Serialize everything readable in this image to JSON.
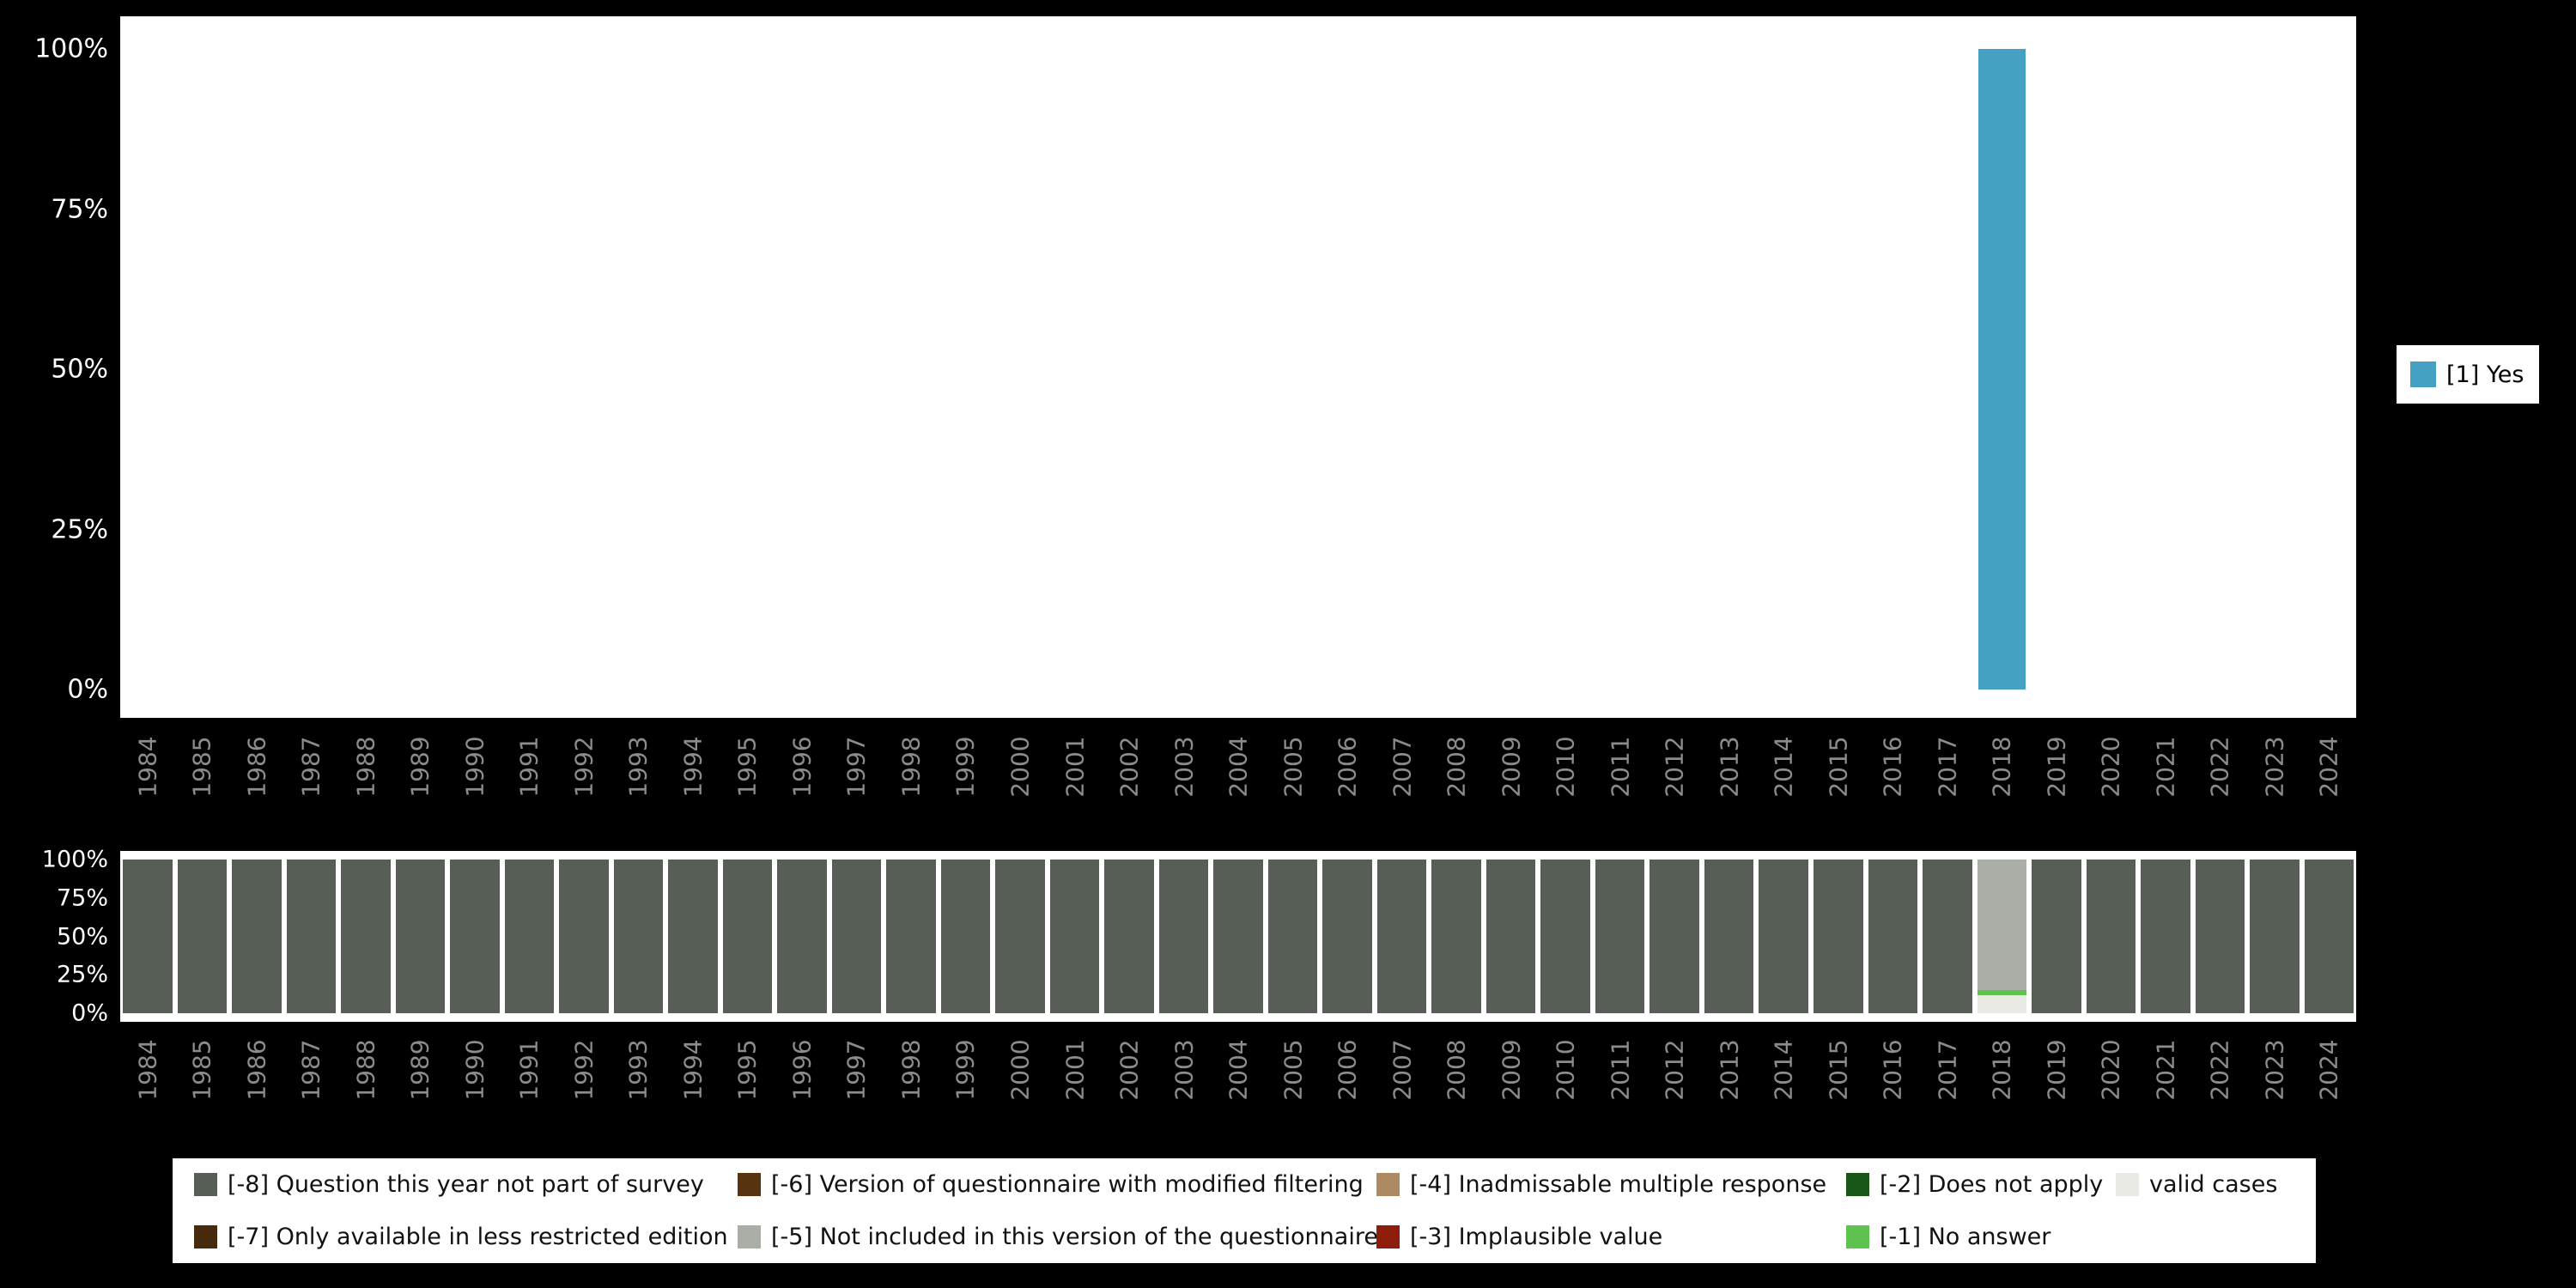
{
  "page": {
    "background": "#000000",
    "panel_background": "#ffffff",
    "x_tick_color": "#8c8c8c",
    "y_tick_color": "#ffffff"
  },
  "chart_data": [
    {
      "type": "bar",
      "title": "",
      "xlabel": "",
      "ylabel": "",
      "ylim": [
        0,
        100
      ],
      "y_ticks": [
        "100%",
        "75%",
        "50%",
        "25%",
        "0%"
      ],
      "legend_position": "right",
      "x": [
        1984,
        1985,
        1986,
        1987,
        1988,
        1989,
        1990,
        1991,
        1992,
        1993,
        1994,
        1995,
        1996,
        1997,
        1998,
        1999,
        2000,
        2001,
        2002,
        2003,
        2004,
        2005,
        2006,
        2007,
        2008,
        2009,
        2010,
        2011,
        2012,
        2013,
        2014,
        2015,
        2016,
        2017,
        2018,
        2019,
        2020,
        2021,
        2022,
        2023,
        2024
      ],
      "series": [
        {
          "name": "[1] Yes",
          "color": "#45a1c1",
          "values": [
            0,
            0,
            0,
            0,
            0,
            0,
            0,
            0,
            0,
            0,
            0,
            0,
            0,
            0,
            0,
            0,
            0,
            0,
            0,
            0,
            0,
            0,
            0,
            0,
            0,
            0,
            0,
            0,
            0,
            0,
            0,
            0,
            0,
            0,
            100,
            0,
            0,
            0,
            0,
            0,
            0
          ]
        }
      ]
    },
    {
      "type": "stacked_bar",
      "title": "",
      "xlabel": "",
      "ylabel": "",
      "ylim": [
        0,
        100
      ],
      "y_ticks": [
        "100%",
        "75%",
        "50%",
        "25%",
        "0%"
      ],
      "legend_position": "bottom",
      "stack_order": "bottom_to_top",
      "x": [
        1984,
        1985,
        1986,
        1987,
        1988,
        1989,
        1990,
        1991,
        1992,
        1993,
        1994,
        1995,
        1996,
        1997,
        1998,
        1999,
        2000,
        2001,
        2002,
        2003,
        2004,
        2005,
        2006,
        2007,
        2008,
        2009,
        2010,
        2011,
        2012,
        2013,
        2014,
        2015,
        2016,
        2017,
        2018,
        2019,
        2020,
        2021,
        2022,
        2023,
        2024
      ],
      "series": [
        {
          "name": "valid cases",
          "color": "#e8eae3",
          "values": [
            0,
            0,
            0,
            0,
            0,
            0,
            0,
            0,
            0,
            0,
            0,
            0,
            0,
            0,
            0,
            0,
            0,
            0,
            0,
            0,
            0,
            0,
            0,
            0,
            0,
            0,
            0,
            0,
            0,
            0,
            0,
            0,
            0,
            0,
            12,
            0,
            0,
            0,
            0,
            0,
            0
          ]
        },
        {
          "name": "[-1] No answer",
          "color": "#5ec24e",
          "values": [
            0,
            0,
            0,
            0,
            0,
            0,
            0,
            0,
            0,
            0,
            0,
            0,
            0,
            0,
            0,
            0,
            0,
            0,
            0,
            0,
            0,
            0,
            0,
            0,
            0,
            0,
            0,
            0,
            0,
            0,
            0,
            0,
            0,
            0,
            3,
            0,
            0,
            0,
            0,
            0,
            0
          ]
        },
        {
          "name": "[-5] Not included in this version of the questionnaire",
          "color": "#a9afa6",
          "values": [
            0,
            0,
            0,
            0,
            0,
            0,
            0,
            0,
            0,
            0,
            0,
            0,
            0,
            0,
            0,
            0,
            0,
            0,
            0,
            0,
            0,
            0,
            0,
            0,
            0,
            0,
            0,
            0,
            0,
            0,
            0,
            0,
            0,
            0,
            85,
            0,
            0,
            0,
            0,
            0,
            0
          ]
        },
        {
          "name": "[-8] Question this year not part of survey",
          "color": "#575e55",
          "values": [
            100,
            100,
            100,
            100,
            100,
            100,
            100,
            100,
            100,
            100,
            100,
            100,
            100,
            100,
            100,
            100,
            100,
            100,
            100,
            100,
            100,
            100,
            100,
            100,
            100,
            100,
            100,
            100,
            100,
            100,
            100,
            100,
            100,
            100,
            0,
            100,
            100,
            100,
            100,
            100,
            100
          ]
        }
      ]
    }
  ],
  "legend_right": {
    "items": [
      {
        "label": "[1] Yes",
        "color": "#45a1c1"
      }
    ]
  },
  "legend_bottom": {
    "items": [
      {
        "label": "[-8] Question this year not part of survey",
        "color": "#575e55"
      },
      {
        "label": "[-6] Version of questionnaire with modified filtering",
        "color": "#58330f"
      },
      {
        "label": "[-4] Inadmissable multiple response",
        "color": "#ad8a64"
      },
      {
        "label": "[-2] Does not apply",
        "color": "#175617"
      },
      {
        "label": "valid cases",
        "color": "#e8eae3"
      },
      {
        "label": "[-7] Only available in less restricted edition",
        "color": "#472a0e"
      },
      {
        "label": "[-5] Not included in this version of the questionnaire",
        "color": "#a9afa6"
      },
      {
        "label": "[-3] Implausible value",
        "color": "#8e1d0d"
      },
      {
        "label": "[-1] No answer",
        "color": "#5ec24e"
      }
    ]
  }
}
